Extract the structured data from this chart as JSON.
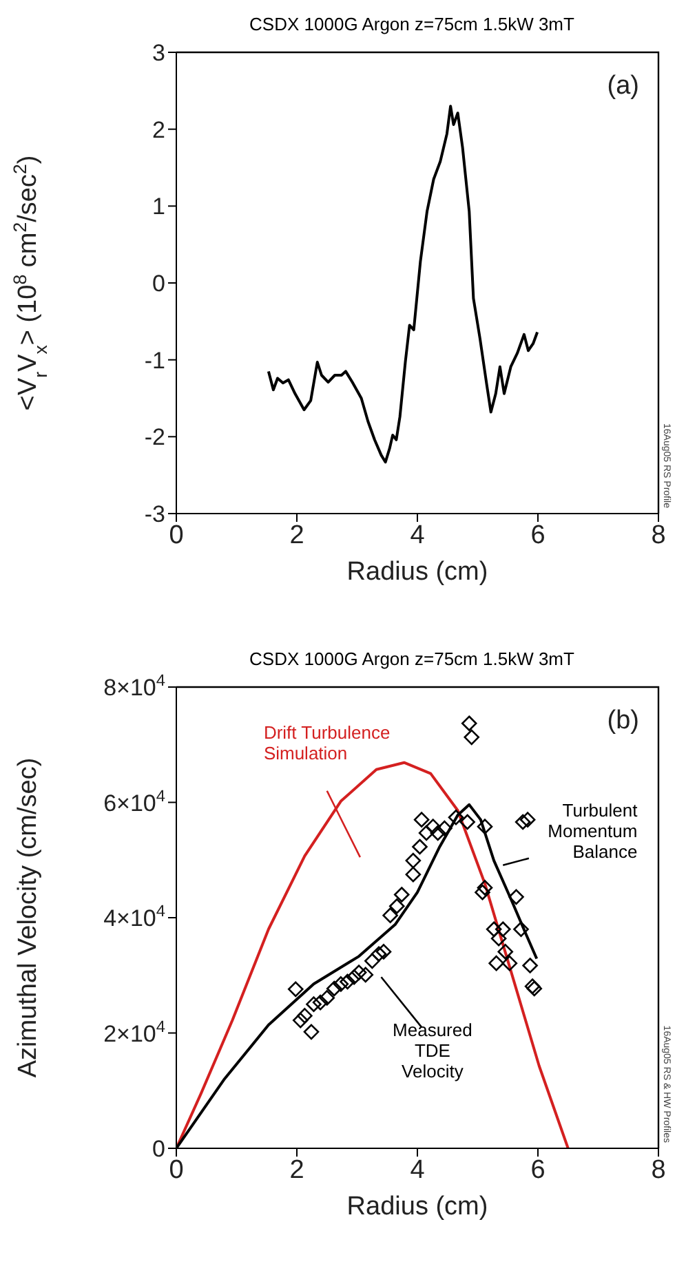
{
  "chart_data": [
    {
      "type": "line",
      "title": "CSDX 1000G Argon z=75cm 1.5kW 3mT",
      "xlabel": "Radius (cm)",
      "ylabel": "<V$_{r}$V$_{x}$> (10$^{8}$ cm$^{2}$/sec$^{2}$)",
      "annotations": [
        "(a)",
        "16Aug05 RS Profile"
      ],
      "color": "#000000",
      "xlim": [
        0,
        8
      ],
      "xticks": [
        0,
        2,
        4,
        6,
        8
      ],
      "ylim": [
        -3,
        3
      ],
      "yticks": [
        -3,
        -2,
        -1,
        0,
        1,
        2,
        3
      ],
      "x": [
        1.53,
        1.61,
        1.68,
        1.77,
        1.86,
        1.97,
        2.12,
        2.23,
        2.34,
        2.41,
        2.52,
        2.63,
        2.74,
        2.81,
        2.92,
        3.07,
        3.18,
        3.29,
        3.4,
        3.47,
        3.54,
        3.59,
        3.65,
        3.71,
        3.8,
        3.87,
        3.94,
        4.05,
        4.16,
        4.27,
        4.38,
        4.49,
        4.55,
        4.6,
        4.67,
        4.75,
        4.86,
        4.93,
        5.04,
        5.15,
        5.22,
        5.3,
        5.37,
        5.44,
        5.55,
        5.66,
        5.77,
        5.84,
        5.92,
        5.99
      ],
      "values": [
        -1.15,
        -1.39,
        -1.24,
        -1.3,
        -1.26,
        -1.44,
        -1.65,
        -1.53,
        -1.03,
        -1.2,
        -1.29,
        -1.2,
        -1.2,
        -1.15,
        -1.29,
        -1.5,
        -1.8,
        -2.04,
        -2.24,
        -2.33,
        -2.15,
        -1.98,
        -2.04,
        -1.74,
        -1.03,
        -0.55,
        -0.61,
        0.28,
        0.93,
        1.35,
        1.58,
        1.94,
        2.3,
        2.06,
        2.21,
        1.76,
        0.93,
        -0.2,
        -0.73,
        -1.32,
        -1.68,
        -1.44,
        -1.09,
        -1.44,
        -1.09,
        -0.91,
        -0.67,
        -0.88,
        -0.79,
        -0.64
      ]
    },
    {
      "type": "line",
      "title": "CSDX 1000G Argon z=75cm 1.5kW 3mT",
      "xlabel": "Radius (cm)",
      "ylabel": "Azimuthal Velocity (cm/sec)",
      "annotations": [
        "(b)",
        "16Aug05 RS & HW Profiles"
      ],
      "xlim": [
        0,
        8
      ],
      "xticks": [
        0,
        2,
        4,
        6,
        8
      ],
      "ylim": [
        0,
        80000
      ],
      "yticks": [
        0,
        {
          "value": 20000,
          "label": "2×10$^{4}$"
        },
        {
          "value": 40000,
          "label": "4×10$^{4}$"
        },
        {
          "value": 60000,
          "label": "6×10$^{4}$"
        },
        {
          "value": 80000,
          "label": "8×10$^{4}$"
        }
      ],
      "series": [
        {
          "name": "Drift Turbulence Simulation",
          "color": "#d42020",
          "x": [
            0,
            0.41,
            0.93,
            1.53,
            2.13,
            2.73,
            3.32,
            3.78,
            4.22,
            4.67,
            5.12,
            5.57,
            6.02,
            6.5
          ],
          "values": [
            0,
            9500,
            22200,
            38000,
            50700,
            60200,
            65700,
            66900,
            65000,
            58600,
            45900,
            30100,
            14300,
            0
          ]
        },
        {
          "name": "Turbulent Momentum Balance",
          "color": "#000000",
          "x": [
            0,
            0.79,
            1.53,
            2.28,
            3.03,
            3.63,
            4.0,
            4.37,
            4.67,
            4.86,
            5.05,
            5.27,
            5.57,
            5.8,
            5.98
          ],
          "values": [
            0,
            11900,
            21400,
            28500,
            33300,
            38800,
            44400,
            52300,
            57800,
            59600,
            57000,
            49900,
            42800,
            37200,
            32900
          ]
        },
        {
          "type": "scatter",
          "name": "Measured TDE Velocity",
          "color": "#000000",
          "marker": "diamond",
          "x": [
            1.98,
            2.06,
            2.13,
            2.24,
            2.28,
            2.39,
            2.5,
            2.62,
            2.73,
            2.84,
            2.95,
            3.03,
            3.14,
            3.25,
            3.36,
            3.44,
            3.55,
            3.66,
            3.74,
            3.93,
            3.93,
            4.04,
            4.07,
            4.15,
            4.26,
            4.34,
            4.45,
            4.64,
            4.83,
            4.86,
            4.9,
            5.12,
            5.08,
            5.12,
            5.27,
            5.35,
            5.31,
            5.42,
            5.46,
            5.53,
            5.64,
            5.75,
            5.83,
            5.72,
            5.87,
            5.91,
            5.94
          ],
          "values": [
            27600,
            22200,
            23000,
            20200,
            25000,
            25300,
            26100,
            27700,
            28500,
            28900,
            29700,
            30500,
            30100,
            32500,
            33700,
            34100,
            40400,
            42000,
            44000,
            47500,
            49900,
            52300,
            57000,
            54700,
            55800,
            54700,
            55500,
            57400,
            56600,
            73700,
            71300,
            55800,
            44400,
            45200,
            38000,
            36400,
            32100,
            38000,
            34100,
            32100,
            43600,
            56600,
            57000,
            38000,
            31700,
            28100,
            27700
          ]
        }
      ]
    }
  ]
}
